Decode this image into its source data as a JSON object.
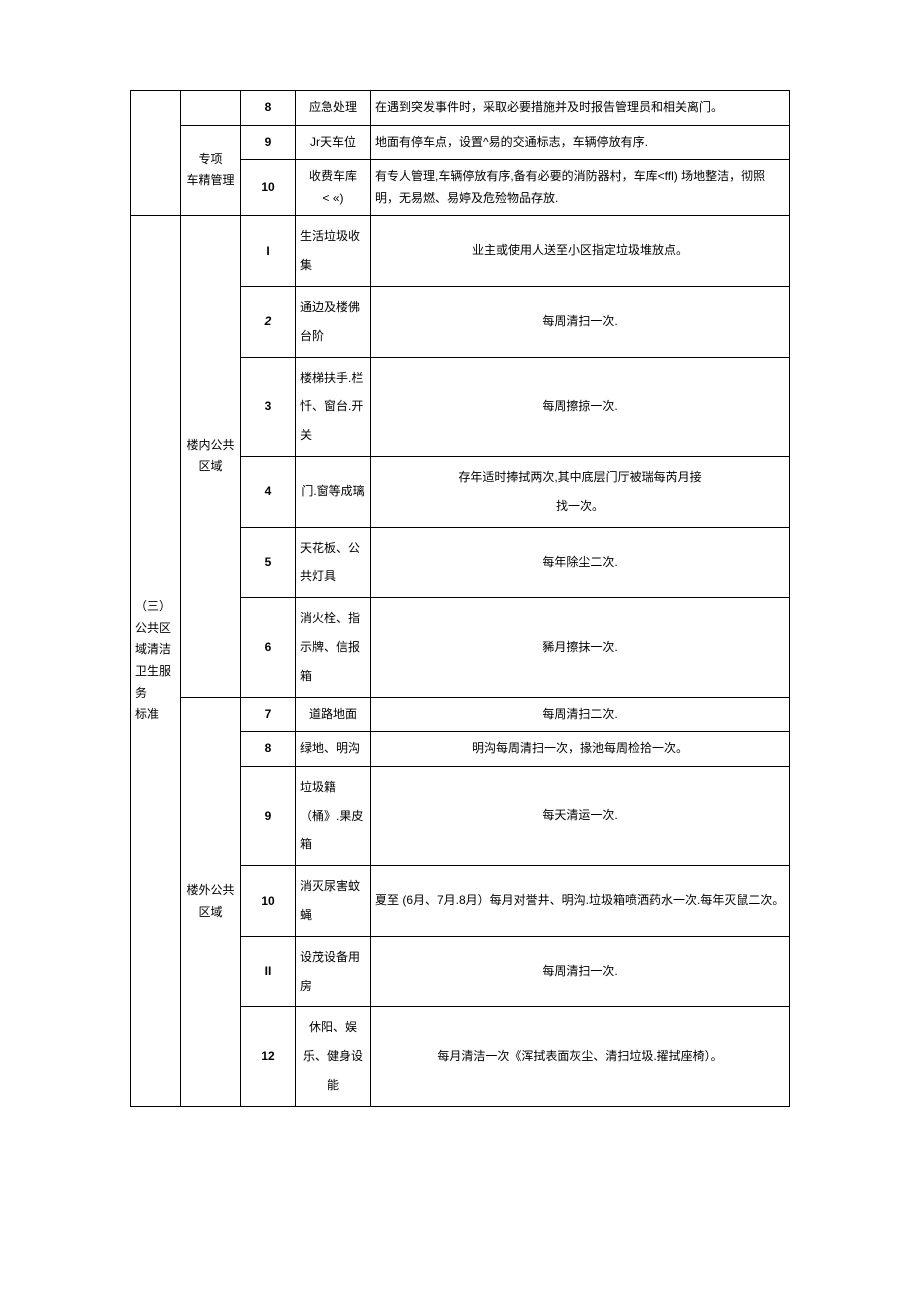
{
  "sections": {
    "prev": {
      "row8": {
        "num": "8",
        "item": "应急处理",
        "desc": "在遇到突发事件时，采取必要措施并及时报告管理员和相关离门。"
      },
      "subgroup": "专项\n车精管理",
      "row9": {
        "num": "9",
        "item": "Jr天车位",
        "desc": "地面有停车点，设置^易的交通标志，车辆停放有序."
      },
      "row10": {
        "num": "10",
        "item": "收费车库\n< «)",
        "desc": "有专人管理,车辆停放有序,备有必要的消防器村，车库<ffl) 场地整洁，彻照明，无易燃、易婷及危殓物品存放."
      }
    },
    "section3": {
      "title": "（三）公共区域清洁卫生服务\n标准",
      "inside": "楼内公共\n区域",
      "outside": "楼外公共\n区域",
      "r1": {
        "num": "I",
        "item": "生活垃圾收\n集",
        "desc": "业主或使用人送至小区指定垃圾堆放点。"
      },
      "r2": {
        "num": "2",
        "item": "通边及楼佛\n台阶",
        "desc": "每周清扫一次."
      },
      "r3": {
        "num": "3",
        "item": "楼梯扶手.栏忏、窗台.开\n关",
        "desc": "每周擦掠一次."
      },
      "r4": {
        "num": "4",
        "item": "门.窗等成璃",
        "desc": "存年适时捧拭两次,其中底层门厅被瑞每芮月接\n找一次。"
      },
      "r5": {
        "num": "5",
        "item": "天花板、公共灯具",
        "desc": "每年除尘二次."
      },
      "r6": {
        "num": "6",
        "item": "消火栓、指示牌、信报箱",
        "desc": "豨月擦抹一次."
      },
      "r7": {
        "num": "7",
        "item": "道路地面",
        "desc": "每周清扫二次."
      },
      "r8": {
        "num": "8",
        "item": "绿地、明沟",
        "desc": "明沟每周清扫一次，掾池每周检拾一次。"
      },
      "r9": {
        "num": "9",
        "item": "垃圾籍（桶》.果皮箱",
        "desc": "每天清运一次."
      },
      "r10": {
        "num": "10",
        "item": "消灭尿害蚊\n蝇",
        "desc": "夏至 (6月、7月.8月）每月对誉井、明沟.垃圾箱喷洒药水一次.每年灭鼠二次。"
      },
      "r11": {
        "num": "II",
        "item": "设茂设备用\n房",
        "desc": "每周清扫一次."
      },
      "r12": {
        "num": "12",
        "item": "休阳、娱乐、健身设能",
        "desc": "每月清洁一次《浑拭表面灰尘、清扫垃圾.擢拭座椅）。"
      }
    }
  }
}
